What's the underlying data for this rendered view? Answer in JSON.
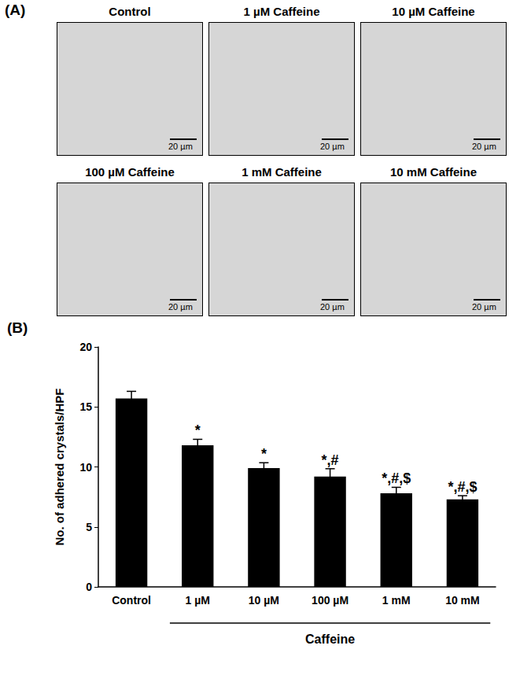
{
  "panel_a": {
    "label": "(A)",
    "images": [
      {
        "title": "Control",
        "scale_bar": "20 µm"
      },
      {
        "title": "1 µM Caffeine",
        "scale_bar": "20 µm"
      },
      {
        "title": "10 µM Caffeine",
        "scale_bar": "20 µm"
      },
      {
        "title": "100 µM Caffeine",
        "scale_bar": "20 µm"
      },
      {
        "title": "1 mM Caffeine",
        "scale_bar": "20 µm"
      },
      {
        "title": "10 mM Caffeine",
        "scale_bar": "20 µm"
      }
    ]
  },
  "chart_data": {
    "type": "bar",
    "panel_label": "(B)",
    "categories": [
      "Control",
      "1 µM",
      "10 µM",
      "100 µM",
      "1 mM",
      "10 mM"
    ],
    "values": [
      15.7,
      11.8,
      9.9,
      9.2,
      7.8,
      7.3
    ],
    "errors": [
      0.6,
      0.5,
      0.45,
      0.65,
      0.5,
      0.3
    ],
    "significance": [
      null,
      "*",
      "*",
      "*,#",
      "*,#,$",
      "*,#,$"
    ],
    "group_label": "Caffeine",
    "y_label": "No. of adhered crystals/HPF",
    "color": "#000000",
    "ylim": [
      0,
      20
    ],
    "yticks": [
      0,
      5,
      10,
      15,
      20
    ],
    "grid": false
  }
}
